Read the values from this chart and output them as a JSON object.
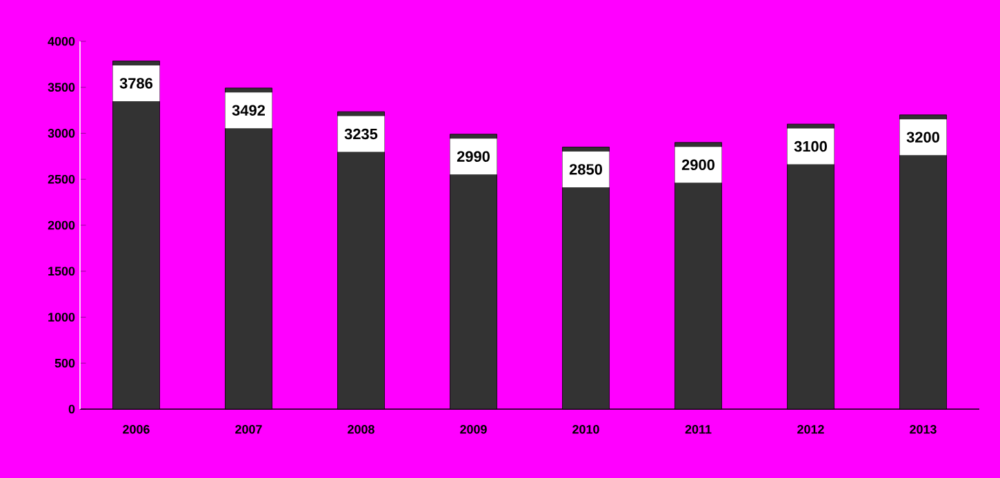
{
  "chart_data": {
    "type": "bar",
    "categories": [
      "2006",
      "2007",
      "2008",
      "2009",
      "2010",
      "2011",
      "2012",
      "2013"
    ],
    "values": [
      3786,
      3492,
      3235,
      2990,
      2850,
      2900,
      3100,
      3200
    ],
    "color": "#333333",
    "ylim": [
      0,
      4000
    ],
    "yticks": [
      0,
      500,
      1000,
      1500,
      2000,
      2500,
      3000,
      3500,
      4000
    ],
    "data_labels": true,
    "grid": false
  }
}
